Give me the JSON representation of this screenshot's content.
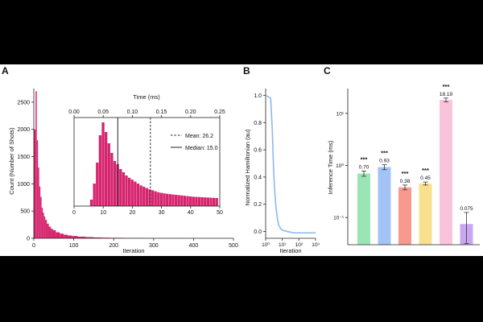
{
  "panels": {
    "a": {
      "letter": "A"
    },
    "b": {
      "letter": "B"
    },
    "c": {
      "letter": "C"
    }
  },
  "colors": {
    "hist": "#D6246E",
    "line_b": "#8DB8EE",
    "bar_c": [
      "#9AE5B4",
      "#A3C2F5",
      "#F79A8E",
      "#F9E08E",
      "#F9C4DA",
      "#C9A7F0"
    ]
  },
  "chart_data": [
    {
      "type": "bar",
      "panel": "A",
      "xlabel": "Iteration",
      "ylabel": "Count (Number of Shots)",
      "xlim": [
        0,
        500
      ],
      "ylim": [
        0,
        2750
      ],
      "xticks": [
        "0",
        "100",
        "200",
        "300",
        "400",
        "500"
      ],
      "yticks": [
        "0",
        "500",
        "1000",
        "1500",
        "2000",
        "2500"
      ],
      "x": [
        3,
        6,
        9,
        12,
        15,
        18,
        21,
        24,
        27,
        30,
        35,
        40,
        45,
        50,
        60,
        70,
        80,
        90,
        100,
        120,
        140,
        160,
        180,
        200,
        250,
        300,
        350,
        400,
        450,
        480
      ],
      "values": [
        2000,
        2700,
        1800,
        1300,
        950,
        760,
        560,
        470,
        400,
        340,
        270,
        215,
        175,
        150,
        110,
        85,
        65,
        52,
        42,
        30,
        22,
        16,
        12,
        9,
        5,
        3,
        2,
        1,
        1,
        1
      ]
    },
    {
      "type": "bar",
      "panel": "A-inset",
      "xticks": [
        "0",
        "10",
        "20",
        "30",
        "40",
        "50"
      ],
      "top_xlabel": "Time (ms)",
      "top_xticks": [
        "0.00",
        "0.05",
        "0.10",
        "0.15",
        "0.20",
        "0.25"
      ],
      "xlim": [
        0,
        50
      ],
      "ylim": [
        0,
        2750
      ],
      "x": [
        6,
        7,
        8,
        9,
        10,
        11,
        12,
        13,
        14,
        15,
        16,
        17,
        18,
        19,
        20,
        21,
        22,
        23,
        24,
        25,
        26,
        27,
        28,
        29,
        30,
        31,
        32,
        33,
        34,
        35,
        36,
        37,
        38,
        39,
        40,
        41,
        42,
        43,
        44,
        45,
        46,
        47,
        48,
        49
      ],
      "values": [
        200,
        700,
        1350,
        2200,
        2600,
        2300,
        1950,
        1650,
        1400,
        1300,
        1150,
        1050,
        950,
        880,
        820,
        760,
        700,
        640,
        600,
        560,
        520,
        490,
        460,
        430,
        410,
        395,
        380,
        370,
        360,
        350,
        340,
        330,
        320,
        310,
        300,
        290,
        285,
        280,
        275,
        270,
        265,
        260,
        255,
        250
      ],
      "mean": 26.2,
      "median": 15.0,
      "legend": [
        "Mean: 26.2",
        "Median: 15.0"
      ]
    },
    {
      "type": "line",
      "panel": "B",
      "xlabel": "Iteration",
      "ylabel": "Normalized Hamiltonian (au)",
      "xscale": "log",
      "xlim": [
        1,
        1000
      ],
      "ylim": [
        -0.05,
        1.05
      ],
      "xticks": [
        "10⁰",
        "10¹",
        "10²",
        "10³"
      ],
      "yticks": [
        "0.0",
        "0.2",
        "0.4",
        "0.6",
        "0.8",
        "1.0"
      ],
      "x": [
        1,
        2,
        2.5,
        3,
        3.5,
        4,
        5,
        6,
        8,
        10,
        20,
        50,
        100,
        300,
        1000
      ],
      "y": [
        1.0,
        0.98,
        0.75,
        0.45,
        0.3,
        0.2,
        0.1,
        0.05,
        0.02,
        0.01,
        0.0,
        -0.01,
        -0.01,
        -0.01,
        -0.01
      ]
    },
    {
      "type": "bar",
      "panel": "C",
      "ylabel": "Inference Time (ms)",
      "yscale": "log",
      "ylim": [
        0.03,
        30
      ],
      "yticks": [
        "10⁻¹",
        "10⁰",
        "10¹"
      ],
      "values": [
        0.7,
        0.93,
        0.38,
        0.45,
        18.19,
        0.075
      ],
      "data_labels": [
        "0.70",
        "0.93",
        "0.38",
        "0.45",
        "18.19",
        "0.075"
      ],
      "errors": [
        0.08,
        0.1,
        0.04,
        0.03,
        1.5,
        0.05
      ],
      "significance": [
        "***",
        "***",
        "***",
        "***",
        "***",
        ""
      ]
    }
  ]
}
